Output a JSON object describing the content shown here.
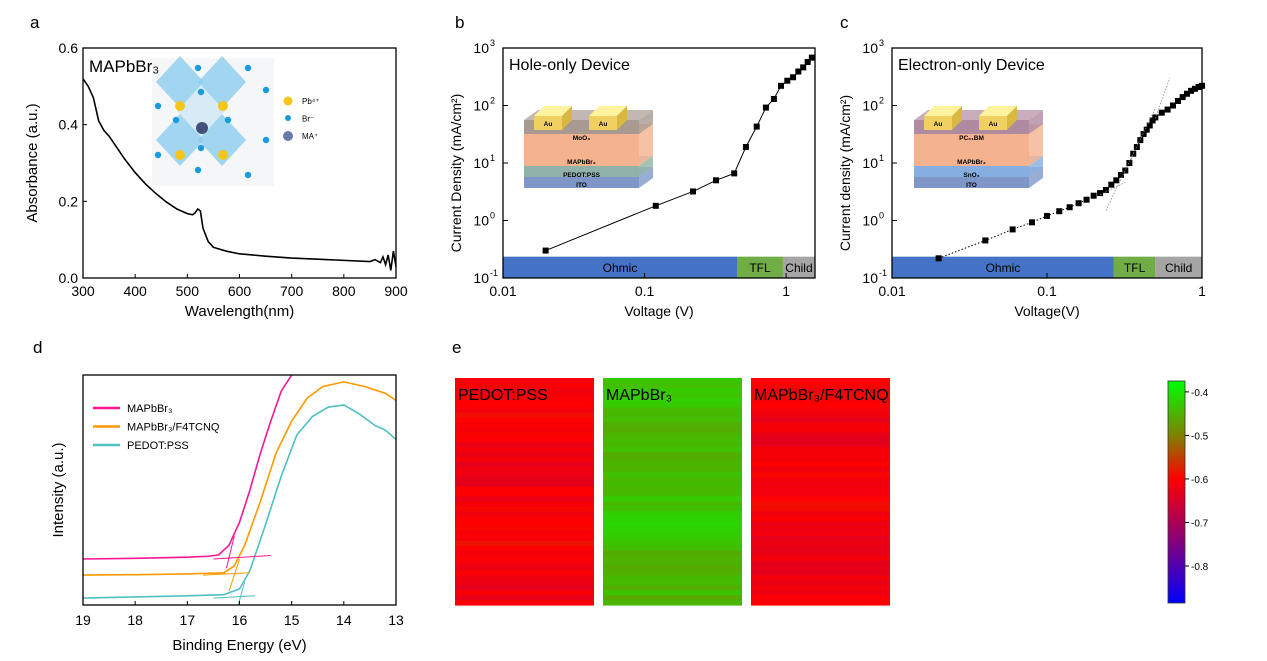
{
  "panel_labels": [
    "a",
    "b",
    "c",
    "d",
    "e"
  ],
  "chart_data": [
    {
      "id": "a",
      "type": "line",
      "title": "MAPbBr₃",
      "xlabel": "Wavelength(nm)",
      "ylabel": "Absorbance (a.u.)",
      "xlim": [
        300,
        900
      ],
      "ylim": [
        0,
        0.6
      ],
      "xticks": [
        300,
        400,
        500,
        600,
        700,
        800,
        900
      ],
      "yticks": [
        "0.0",
        "0.2",
        "0.4",
        "0.6"
      ],
      "inset_legend": [
        "Pb⁴⁺",
        "Br⁻",
        "MA⁺"
      ],
      "series": [
        {
          "name": "MAPbBr₃",
          "color": "#000000",
          "x": [
            300,
            310,
            320,
            330,
            340,
            350,
            360,
            380,
            400,
            420,
            440,
            460,
            480,
            500,
            510,
            515,
            520,
            525,
            530,
            540,
            550,
            575,
            600,
            650,
            700,
            750,
            800,
            850,
            860,
            870,
            875,
            880,
            885,
            890,
            895,
            900
          ],
          "y": [
            0.52,
            0.5,
            0.47,
            0.41,
            0.385,
            0.37,
            0.35,
            0.31,
            0.275,
            0.245,
            0.22,
            0.198,
            0.18,
            0.168,
            0.165,
            0.17,
            0.18,
            0.175,
            0.13,
            0.095,
            0.08,
            0.07,
            0.063,
            0.057,
            0.052,
            0.049,
            0.046,
            0.043,
            0.048,
            0.04,
            0.055,
            0.035,
            0.06,
            0.02,
            0.07,
            0.03
          ]
        }
      ]
    },
    {
      "id": "b",
      "type": "line",
      "scale": "log-log",
      "title": "Hole-only Device",
      "xlabel": "Voltage (V)",
      "ylabel": "Current Density (mA/cm²)",
      "xlim": [
        0.01,
        1.6
      ],
      "ylim": [
        0.1,
        1000
      ],
      "xticks": [
        "0.01",
        "0.1",
        "1"
      ],
      "yticks_exp": [
        -1,
        0,
        1,
        2,
        3
      ],
      "tick_base": "10",
      "regions": [
        {
          "label": "Ohmic",
          "from": 0.01,
          "to": 0.45,
          "color": "#4472c4"
        },
        {
          "label": "TFL",
          "from": 0.45,
          "to": 0.95,
          "color": "#70ad47"
        },
        {
          "label": "Child",
          "from": 0.95,
          "to": 1.6,
          "color": "#a5a5a5"
        }
      ],
      "device_layers": [
        "Au",
        "Au",
        "MoO₃",
        "MAPbBr₃",
        "PEDOT:PSS",
        "ITO"
      ],
      "series": [
        {
          "name": "Hole-only",
          "color": "#000000",
          "x": [
            0.02,
            0.12,
            0.22,
            0.32,
            0.43,
            0.52,
            0.62,
            0.72,
            0.82,
            0.92,
            1.02,
            1.12,
            1.22,
            1.32,
            1.42,
            1.52
          ],
          "y": [
            0.3,
            1.8,
            3.2,
            5,
            6.6,
            19,
            43,
            92,
            130,
            220,
            270,
            310,
            390,
            460,
            570,
            680
          ]
        }
      ]
    },
    {
      "id": "c",
      "type": "scatter",
      "scale": "log-log",
      "title": "Electron-only Device",
      "xlabel": "Voltage(V)",
      "ylabel": "Current density (mA/cm²)",
      "xlim": [
        0.01,
        1
      ],
      "ylim": [
        0.1,
        1000
      ],
      "xticks": [
        "0.01",
        "0.1",
        "1"
      ],
      "yticks_exp": [
        -1,
        0,
        1,
        2,
        3
      ],
      "tick_base": "10",
      "regions": [
        {
          "label": "Ohmic",
          "from": 0.01,
          "to": 0.27,
          "color": "#4472c4"
        },
        {
          "label": "TFL",
          "from": 0.27,
          "to": 0.5,
          "color": "#70ad47"
        },
        {
          "label": "Child",
          "from": 0.5,
          "to": 1,
          "color": "#a5a5a5"
        }
      ],
      "device_layers": [
        "Au",
        "Au",
        "PC₆₁BM",
        "MAPbBr₃",
        "SnO₂",
        "ITO"
      ],
      "series": [
        {
          "name": "Electron-only",
          "color": "#000000",
          "x": [
            0.02,
            0.04,
            0.06,
            0.08,
            0.1,
            0.12,
            0.14,
            0.16,
            0.18,
            0.2,
            0.22,
            0.24,
            0.26,
            0.28,
            0.3,
            0.32,
            0.34,
            0.36,
            0.38,
            0.4,
            0.42,
            0.44,
            0.46,
            0.48,
            0.5,
            0.55,
            0.6,
            0.65,
            0.7,
            0.75,
            0.8,
            0.85,
            0.9,
            0.95,
            1.0
          ],
          "y": [
            0.22,
            0.45,
            0.7,
            0.93,
            1.2,
            1.45,
            1.7,
            2.0,
            2.3,
            2.7,
            3.0,
            3.4,
            4.2,
            5,
            6.2,
            7.4,
            10,
            14.5,
            19,
            25,
            32,
            38,
            45,
            55,
            62,
            75,
            85,
            100,
            120,
            140,
            160,
            180,
            195,
            210,
            220
          ]
        }
      ]
    },
    {
      "id": "d",
      "type": "line",
      "xlabel": "Binding Energy (eV)",
      "ylabel": "Intensity (a.u.)",
      "xlim": [
        19,
        13
      ],
      "ylim": [
        0,
        1
      ],
      "xticks": [
        19,
        18,
        17,
        16,
        15,
        14,
        13
      ],
      "legend_position": "top-left",
      "series": [
        {
          "name": "MAPbBr₃",
          "color": "#ff1493",
          "x": [
            19,
            18,
            17,
            16.6,
            16.4,
            16.2,
            16.0,
            15.8,
            15.6,
            15.4,
            15.2,
            15.0
          ],
          "y": [
            0.2,
            0.203,
            0.208,
            0.212,
            0.218,
            0.26,
            0.36,
            0.5,
            0.66,
            0.8,
            0.93,
            1.0
          ]
        },
        {
          "name": "MAPbBr₃/F4TCNQ",
          "color": "#ff9900",
          "x": [
            19,
            18,
            17,
            16.3,
            16.1,
            15.9,
            15.6,
            15.3,
            15.0,
            14.7,
            14.4,
            14.0,
            13.6,
            13.2,
            13.0
          ],
          "y": [
            0.13,
            0.132,
            0.135,
            0.14,
            0.17,
            0.26,
            0.45,
            0.66,
            0.8,
            0.9,
            0.95,
            0.97,
            0.95,
            0.92,
            0.89
          ]
        },
        {
          "name": "PEDOT:PSS",
          "color": "#4fc0c0",
          "x": [
            19,
            18,
            17,
            16.3,
            16.0,
            15.8,
            15.5,
            15.2,
            14.9,
            14.6,
            14.3,
            14.0,
            13.7,
            13.4,
            13.2,
            13.0
          ],
          "y": [
            0.03,
            0.035,
            0.04,
            0.045,
            0.07,
            0.15,
            0.35,
            0.56,
            0.74,
            0.82,
            0.86,
            0.87,
            0.83,
            0.78,
            0.76,
            0.72
          ]
        }
      ]
    },
    {
      "id": "e",
      "type": "heatmap",
      "maps": [
        {
          "label": "PEDOT:PSS",
          "mean": -0.61
        },
        {
          "label": "MAPbBr₃",
          "mean": -0.44
        },
        {
          "label": "MAPbBr₃/F4TCNQ",
          "mean": -0.61
        }
      ],
      "colorbar": {
        "range": [
          -0.885,
          -0.375
        ],
        "ticks": [
          "-0.4",
          "-0.5",
          "-0.6",
          "-0.7",
          "-0.8"
        ],
        "stops": [
          {
            "v": -0.375,
            "c": "#00ff00"
          },
          {
            "v": -0.5,
            "c": "#808000"
          },
          {
            "v": -0.6,
            "c": "#ff0000"
          },
          {
            "v": -0.75,
            "c": "#800080"
          },
          {
            "v": -0.885,
            "c": "#0000ff"
          }
        ]
      }
    }
  ]
}
